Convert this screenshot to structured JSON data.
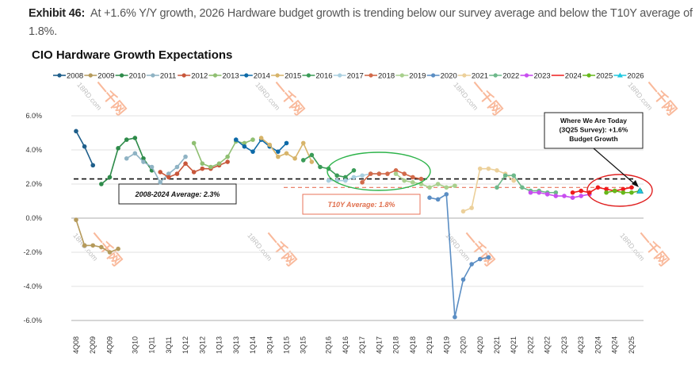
{
  "caption": {
    "label": "Exhibit 46:",
    "text": "At +1.6% Y/Y growth, 2026 Hardware budget growth is trending below our survey average and below the T10Y average of 1.8%."
  },
  "chart_data": {
    "type": "line",
    "title": "CIO Hardware Growth Expectations",
    "xlabel": "",
    "ylabel": "",
    "ylim": [
      -6.0,
      6.0
    ],
    "yticks": [
      "6.0%",
      "4.0%",
      "2.0%",
      "0.0%",
      "-2.0%",
      "-4.0%",
      "-6.0%"
    ],
    "ytick_values": [
      6,
      4,
      2,
      0,
      -2,
      -4,
      -6
    ],
    "grid": true,
    "legend_position": "top",
    "x_quarters": [
      "4Q08",
      "1Q09",
      "2Q09",
      "3Q09",
      "4Q09",
      "1Q10",
      "2Q10",
      "3Q10",
      "4Q10",
      "1Q11",
      "2Q11",
      "3Q11",
      "4Q11",
      "1Q12",
      "2Q12",
      "3Q12",
      "4Q12",
      "1Q13",
      "2Q13",
      "3Q13",
      "4Q13",
      "1Q14",
      "2Q14",
      "3Q14",
      "4Q14",
      "1Q15",
      "2Q15",
      "3Q15",
      "4Q15",
      "1Q16",
      "2Q16",
      "3Q16",
      "4Q16",
      "1Q17",
      "2Q17",
      "3Q17",
      "4Q17",
      "1Q18",
      "2Q18",
      "3Q18",
      "4Q18",
      "1Q19",
      "2Q19",
      "3Q19",
      "4Q19",
      "1Q20",
      "2Q20",
      "3Q20",
      "4Q20",
      "1Q21",
      "2Q21",
      "3Q21",
      "4Q21",
      "1Q22",
      "2Q22",
      "3Q22",
      "4Q22",
      "1Q23",
      "2Q23",
      "3Q23",
      "4Q23",
      "1Q24",
      "2Q24",
      "3Q24",
      "4Q24",
      "1Q25",
      "2Q25",
      "3Q25"
    ],
    "x_tick_labels": [
      "4Q08",
      "2Q09",
      "4Q09",
      "3Q10",
      "1Q11",
      "3Q11",
      "1Q12",
      "3Q12",
      "1Q13",
      "3Q13",
      "1Q14",
      "3Q14",
      "1Q15",
      "3Q15",
      "2Q16",
      "4Q16",
      "2Q17",
      "4Q17",
      "2Q18",
      "4Q18",
      "2Q19",
      "4Q19",
      "2Q20",
      "4Q20",
      "2Q21",
      "4Q21",
      "2Q22",
      "4Q22",
      "2Q23",
      "4Q23",
      "2Q24",
      "4Q24",
      "2Q25"
    ],
    "series": [
      {
        "name": "2008",
        "color": "#1f5f8b",
        "marker": "circle",
        "start": "4Q08",
        "values": [
          5.1,
          4.2,
          3.1
        ]
      },
      {
        "name": "2009",
        "color": "#b59a5b",
        "marker": "circle",
        "start": "4Q08",
        "values": [
          -0.1,
          -1.6,
          -1.6,
          -1.7,
          -2.0,
          -1.8
        ]
      },
      {
        "name": "2010",
        "color": "#2e8b4a",
        "marker": "circle",
        "start": "3Q09",
        "values": [
          2.0,
          2.4,
          4.1,
          4.6,
          4.7,
          3.5,
          2.8
        ]
      },
      {
        "name": "2011",
        "color": "#8fb3c4",
        "marker": "circle",
        "start": "2Q10",
        "values": [
          3.5,
          3.8,
          3.3,
          3.0,
          2.1,
          2.6,
          3.0,
          3.6
        ]
      },
      {
        "name": "2012",
        "color": "#c8573b",
        "marker": "circle",
        "start": "2Q11",
        "values": [
          2.7,
          2.4,
          2.6,
          3.2,
          2.7,
          2.9,
          2.9,
          3.1,
          3.3
        ]
      },
      {
        "name": "2013",
        "color": "#8fbf72",
        "marker": "circle",
        "start": "2Q12",
        "values": [
          4.4,
          3.2,
          3.0,
          3.2,
          3.6,
          4.5,
          4.4,
          4.6
        ]
      },
      {
        "name": "2014",
        "color": "#0d6aa8",
        "marker": "circle",
        "start": "3Q13",
        "values": [
          4.6,
          4.2,
          3.9,
          4.6,
          4.2,
          3.9,
          4.4
        ]
      },
      {
        "name": "2015",
        "color": "#d7b46a",
        "marker": "circle",
        "start": "2Q14",
        "values": [
          4.7,
          4.3,
          3.6,
          3.8,
          3.5,
          4.4,
          3.3
        ]
      },
      {
        "name": "2016",
        "color": "#3a9b57",
        "marker": "circle",
        "start": "3Q15",
        "values": [
          3.4,
          3.7,
          3.0,
          2.9,
          2.5,
          2.4,
          2.8
        ]
      },
      {
        "name": "2017",
        "color": "#a9cfe0",
        "marker": "circle",
        "start": "2Q16",
        "values": [
          2.2,
          2.2,
          2.2,
          2.4,
          2.5,
          2.6,
          2.6
        ]
      },
      {
        "name": "2018",
        "color": "#d26a4a",
        "marker": "circle",
        "start": "2Q17",
        "values": [
          2.1,
          2.6,
          2.6,
          2.6,
          2.8,
          2.6,
          2.4,
          2.3
        ]
      },
      {
        "name": "2019",
        "color": "#a8d08d",
        "marker": "circle",
        "start": "2Q18",
        "values": [
          2.6,
          2.2,
          2.1,
          2.0,
          1.8,
          2.0,
          1.8,
          1.9
        ]
      },
      {
        "name": "2020",
        "color": "#5b8ec4",
        "marker": "circle",
        "start": "2Q19",
        "values": [
          1.2,
          1.1,
          1.4,
          -5.8,
          -3.6,
          -2.7,
          -2.4,
          -2.3
        ]
      },
      {
        "name": "2021",
        "color": "#ecd09a",
        "marker": "circle",
        "start": "2Q20",
        "values": [
          0.4,
          0.6,
          2.9,
          2.9,
          2.8,
          2.6,
          2.2
        ]
      },
      {
        "name": "2022",
        "color": "#6db88a",
        "marker": "circle",
        "start": "2Q21",
        "values": [
          1.8,
          2.5,
          2.5,
          1.8,
          1.6,
          1.6,
          1.5,
          1.5
        ]
      },
      {
        "name": "2023",
        "color": "#c84ef0",
        "marker": "circle",
        "start": "2Q22",
        "values": [
          1.5,
          1.5,
          1.4,
          1.3,
          1.3,
          1.2,
          1.3,
          1.4
        ]
      },
      {
        "name": "2024",
        "color": "#ee1c1c",
        "marker": "none",
        "start": "3Q23",
        "values": [
          1.5,
          1.6,
          1.5,
          1.8,
          1.7,
          1.6,
          1.7,
          1.8
        ]
      },
      {
        "name": "2025",
        "color": "#66b81a",
        "marker": "circle",
        "start": "3Q24",
        "values": [
          1.5,
          1.6,
          1.5,
          1.5,
          1.6
        ]
      },
      {
        "name": "2026",
        "color": "#1ec8e0",
        "marker": "triangle",
        "start": "3Q25",
        "values": [
          1.6
        ]
      }
    ],
    "reference_lines": [
      {
        "name": "2008-2024 Average",
        "value": 2.3,
        "label": "2008-2024 Average: 2.3%",
        "color": "#111111"
      },
      {
        "name": "T10Y Average",
        "value": 1.8,
        "label": "T10Y Average: 1.8%",
        "color": "#e8735a"
      }
    ],
    "annotations": [
      {
        "text_lines": [
          "Where We Are Today",
          "(3Q25 Survey): +1.6%",
          "Budget Growth"
        ]
      }
    ]
  },
  "watermark": {
    "logo": "一千网",
    "site": "18RD.com"
  }
}
